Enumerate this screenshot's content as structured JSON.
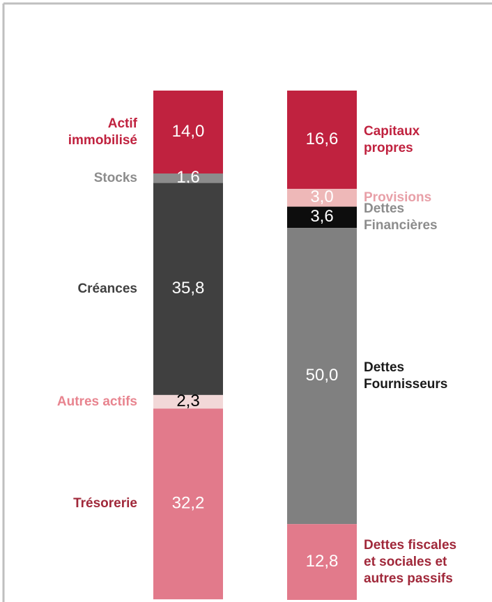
{
  "chart_data": {
    "type": "stacked_bar",
    "columns": [
      {
        "segments": [
          {
            "name": "Actif\nimmobilisé",
            "value": 14.0,
            "value_label": "14,0",
            "color": "#c0223f",
            "name_color": "#c0223f",
            "text_color": "#ffffff"
          },
          {
            "name": "Stocks",
            "value": 1.6,
            "value_label": "1,6",
            "color": "#8c8c8c",
            "name_color": "#8c8c8c",
            "text_color": "#ffffff"
          },
          {
            "name": "Créances",
            "value": 35.8,
            "value_label": "35,8",
            "color": "#404040",
            "name_color": "#404040",
            "text_color": "#ffffff"
          },
          {
            "name": "Autres actifs",
            "value": 2.3,
            "value_label": "2,3",
            "color": "#f2d8d8",
            "name_color": "#e8848f",
            "text_color": "#000000"
          },
          {
            "name": "Trésorerie",
            "value": 32.2,
            "value_label": "32,2",
            "color": "#e27a8b",
            "name_color": "#a0283a",
            "text_color": "#ffffff"
          }
        ]
      },
      {
        "segments": [
          {
            "name": "Capitaux\npropres",
            "value": 16.6,
            "value_label": "16,6",
            "color": "#c0223f",
            "name_color": "#c0223f",
            "text_color": "#ffffff"
          },
          {
            "name": "Provisions",
            "value": 3.0,
            "value_label": "3,0",
            "color": "#eeb8b8",
            "name_color": "#e8a0a8",
            "text_color": "#ffffff"
          },
          {
            "name": "Dettes\nFinancières",
            "value": 3.6,
            "value_label": "3,6",
            "color": "#0d0d0d",
            "name_color": "#8c8c8c",
            "text_color": "#ffffff"
          },
          {
            "name": "Dettes\nFournisseurs",
            "value": 50.0,
            "value_label": "50,0",
            "color": "#808080",
            "name_color": "#1a1a1a",
            "text_color": "#ffffff"
          },
          {
            "name": "Dettes fiscales\net sociales  et\nautres passifs",
            "value": 12.8,
            "value_label": "12,8",
            "color": "#e27a8b",
            "name_color": "#a0283a",
            "text_color": "#ffffff"
          }
        ]
      }
    ]
  }
}
